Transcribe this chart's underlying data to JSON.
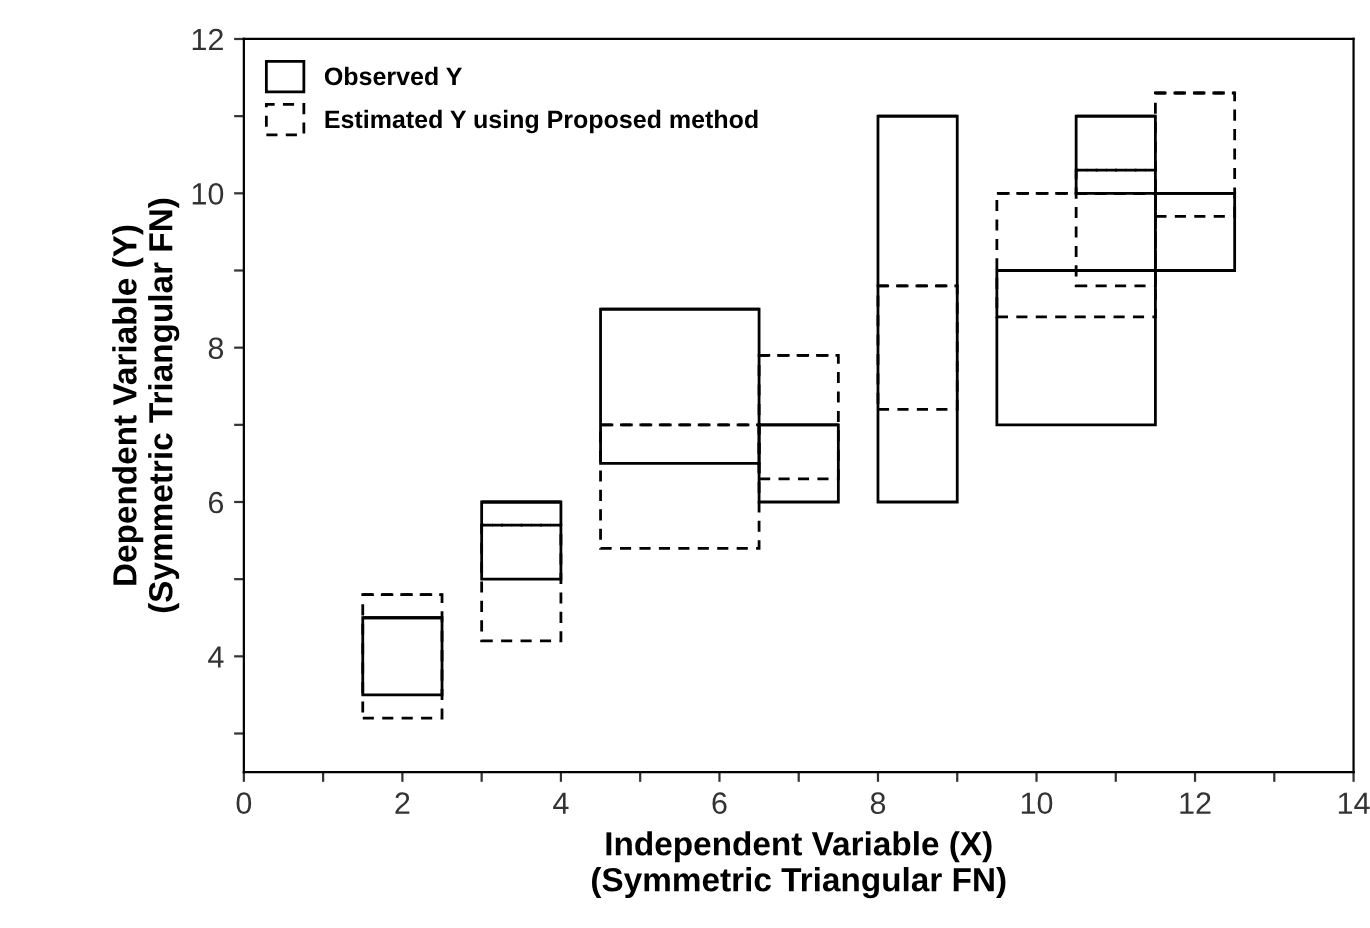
{
  "chart_data": {
    "type": "bar",
    "xlabel": "Independent Variable (X)\n(Symmetric Triangular FN)",
    "ylabel": "Dependent Variable (Y)\n(Symmetric Triangular FN)",
    "x": [
      2,
      3.5,
      5.5,
      7,
      8.5,
      10.5,
      11,
      12
    ],
    "series": [
      {
        "name": "Observed Y",
        "color": "#000000",
        "line_style": "solid",
        "base": [
          3.5,
          5,
          6.5,
          6,
          6,
          7,
          10,
          9
        ],
        "values": [
          1,
          1,
          2,
          1,
          5,
          2,
          1,
          1
        ],
        "xerrors": [
          0.5,
          0.5,
          1,
          0.5,
          0.5,
          1,
          0.5,
          0.5
        ]
      },
      {
        "name": "Estimated Y using Proposed method",
        "color": "#000000",
        "line_style": "dashed",
        "base": [
          3.2,
          4.2,
          5.4,
          6.3,
          7.2,
          8.4,
          8.8,
          9.7
        ],
        "values": [
          1.6,
          1.5,
          1.6,
          1.6,
          1.6,
          1.6,
          1.5,
          1.6
        ],
        "xerrors": [
          0.5,
          0.5,
          1,
          0.5,
          0.5,
          1,
          0.5,
          0.5
        ]
      }
    ],
    "xlim": [
      0,
      14
    ],
    "xticks": [
      0,
      {
        "value": 1,
        "label": null
      },
      2,
      {
        "value": 3,
        "label": null
      },
      4,
      {
        "value": 5,
        "label": null
      },
      6,
      {
        "value": 7,
        "label": null
      },
      8,
      {
        "value": 9,
        "label": null
      },
      10,
      {
        "value": 11,
        "label": null
      },
      12,
      {
        "value": 13,
        "label": null
      },
      14
    ],
    "ylim": [
      2.5,
      12
    ],
    "yticks": [
      {
        "value": 3,
        "label": null
      },
      4,
      {
        "value": 5,
        "label": null
      },
      6,
      {
        "value": 7,
        "label": null
      },
      8,
      {
        "value": 9,
        "label": null
      },
      10,
      {
        "value": 11,
        "label": null
      },
      12
    ],
    "grid": false,
    "legend": "top left"
  }
}
